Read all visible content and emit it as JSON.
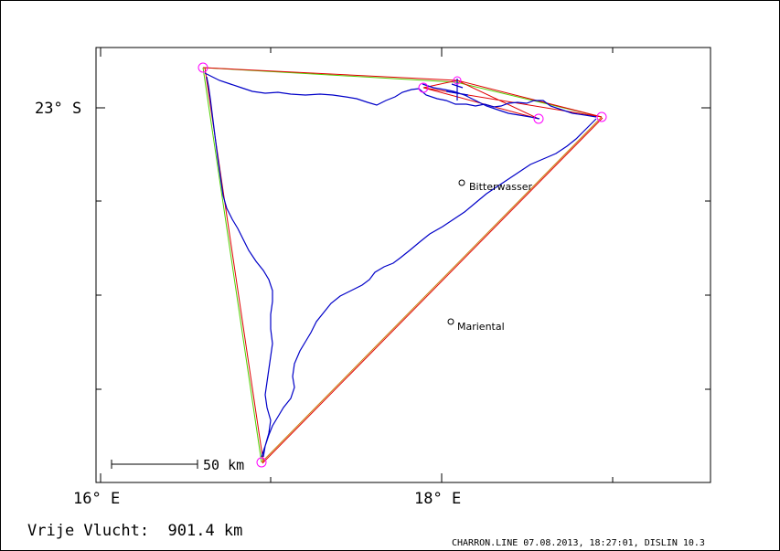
{
  "map": {
    "lat_label": "23° S",
    "lon_labels": [
      "16° E",
      "18° E"
    ],
    "scale_label": "50 km",
    "places": [
      {
        "name": "Bitterwasser"
      },
      {
        "name": "Mariental"
      }
    ]
  },
  "footer": {
    "distance_text": "Vrije Vlucht:  901.4 km",
    "info_text": "CHARRON.LINE 07.08.2013, 18:27:01, DISLIN 10.3"
  },
  "colors": {
    "track": "#0000c8",
    "route_red": "#e00000",
    "route_green": "#50d000",
    "route_orange": "#c87800",
    "turnpoint": "#ff00ff"
  }
}
